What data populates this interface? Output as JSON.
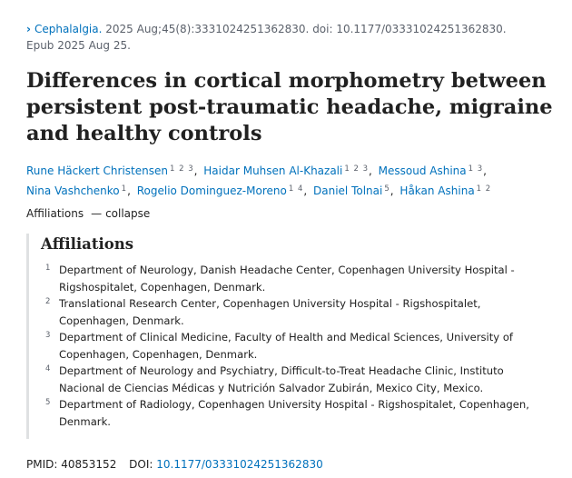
{
  "citation": {
    "journal": "Cephalalgia.",
    "details": "2025 Aug;45(8):3331024251362830. doi: 10.1177/03331024251362830.",
    "epub": "Epub 2025 Aug 25."
  },
  "title": "Differences in cortical morphometry between persistent post-traumatic headache, migraine and healthy controls",
  "authors": [
    {
      "name": "Rune Häckert Christensen",
      "affs": "1 2 3"
    },
    {
      "name": "Haidar Muhsen Al-Khazali",
      "affs": "1 2 3"
    },
    {
      "name": "Messoud Ashina",
      "affs": "1 3"
    },
    {
      "name": "Nina Vashchenko",
      "affs": "1"
    },
    {
      "name": "Rogelio Dominguez-Moreno",
      "affs": "1 4"
    },
    {
      "name": "Daniel Tolnai",
      "affs": "5"
    },
    {
      "name": "Håkan Ashina",
      "affs": "1 2"
    }
  ],
  "affiliations_toggle": {
    "label": "Affiliations",
    "action": "collapse"
  },
  "affiliations": {
    "heading": "Affiliations",
    "items": [
      {
        "num": "1",
        "text": "Department of Neurology, Danish Headache Center, Copenhagen University Hospital - Rigshospitalet, Copenhagen, Denmark."
      },
      {
        "num": "2",
        "text": "Translational Research Center, Copenhagen University Hospital - Rigshospitalet, Copenhagen, Denmark."
      },
      {
        "num": "3",
        "text": "Department of Clinical Medicine, Faculty of Health and Medical Sciences, University of Copenhagen, Copenhagen, Denmark."
      },
      {
        "num": "4",
        "text": "Department of Neurology and Psychiatry, Difficult-to-Treat Headache Clinic, Instituto Nacional de Ciencias Médicas y Nutrición Salvador Zubirán, Mexico City, Mexico."
      },
      {
        "num": "5",
        "text": "Department of Radiology, Copenhagen University Hospital - Rigshospitalet, Copenhagen, Denmark."
      }
    ]
  },
  "identifiers": {
    "pmid_label": "PMID:",
    "pmid": "40853152",
    "doi_label": "DOI:",
    "doi": "10.1177/03331024251362830"
  },
  "colors": {
    "link": "#0071bc",
    "text": "#212121",
    "muted": "#5b616b",
    "rule": "#dfe1e2"
  },
  "icons": {
    "citation_chevron": "chevron-right-icon"
  }
}
